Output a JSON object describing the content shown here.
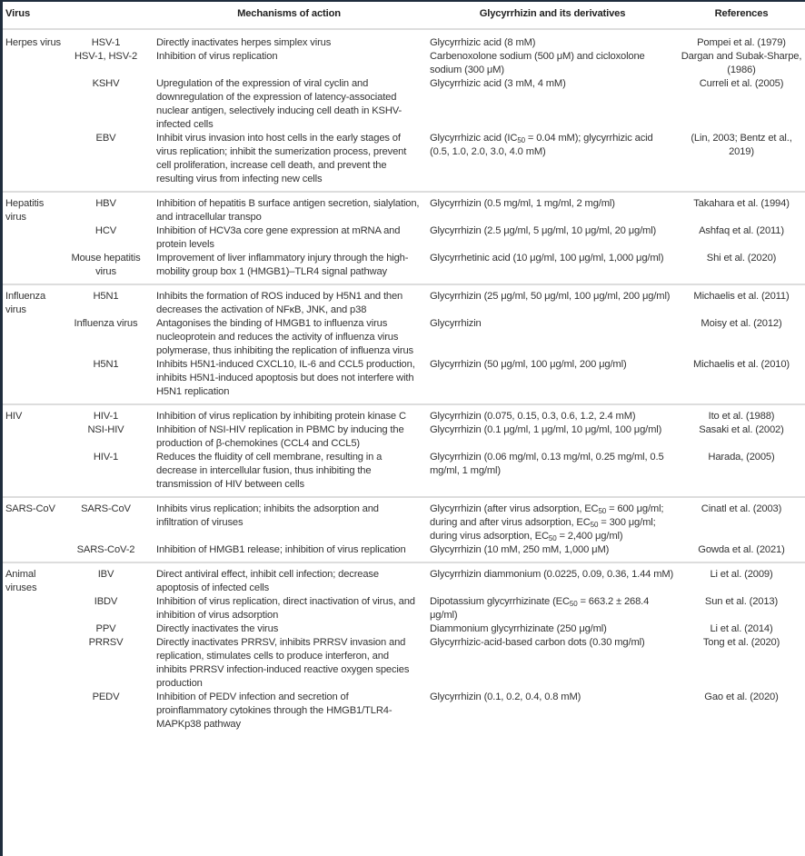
{
  "header": {
    "virus": "Virus",
    "mechanism": "Mechanisms of action",
    "glycyrrhizin": "Glycyrrhizin and its derivatives",
    "references": "References"
  },
  "groups": [
    {
      "name": "Herpes virus",
      "rows": [
        {
          "virus": "HSV-1",
          "mechanism": "Directly inactivates herpes simplex virus",
          "gly": [
            "Glycyrrhizic acid (8 mM)"
          ],
          "ref": "Pompei et al. (1979)"
        },
        {
          "virus": "HSV-1, HSV-2",
          "mechanism": "Inhibition of virus replication",
          "gly": [
            "Carbenoxolone sodium (500 μM) and cicloxolone sodium (300 μM)"
          ],
          "ref": "Dargan and Subak-Sharpe, (1986)"
        },
        {
          "virus": "KSHV",
          "mechanism": "Upregulation of the expression of viral cyclin and downregulation of the expression of latency-associated nuclear antigen, selectively inducing cell death in KSHV-infected cells",
          "gly": [
            "Glycyrrhizic acid (3 mM, 4 mM)"
          ],
          "ref": "Curreli et al. (2005)"
        },
        {
          "virus": "EBV",
          "mechanism": "Inhibit virus invasion into host cells in the early stages of virus replication; inhibit the sumerization process, prevent cell proliferation, increase cell death, and prevent the resulting virus from infecting new cells",
          "gly": [
            "Glycyrrhizic acid (IC",
            "50",
            " = 0.04 mM); glycyrrhizic acid (0.5, 1.0, 2.0, 3.0, 4.0 mM)"
          ],
          "ref": "(Lin, 2003; Bentz et al., 2019)"
        }
      ]
    },
    {
      "name": "Hepatitis virus",
      "rows": [
        {
          "virus": "HBV",
          "mechanism": "Inhibition of hepatitis B surface antigen secretion, sialylation, and intracellular transpo",
          "gly": [
            "Glycyrrhizin (0.5 mg/ml, 1 mg/ml, 2 mg/ml)"
          ],
          "ref": "Takahara et al. (1994)"
        },
        {
          "virus": "HCV",
          "mechanism": "Inhibition of HCV3a core gene expression at mRNA and protein levels",
          "gly": [
            "Glycyrrhizin (2.5 μg/ml, 5 μg/ml, 10 μg/ml, 20 μg/ml)"
          ],
          "ref": "Ashfaq et al. (2011)"
        },
        {
          "virus": "Mouse hepatitis virus",
          "mechanism": "Improvement of liver inflammatory injury through the high-mobility group box 1 (HMGB1)–TLR4 signal pathway",
          "gly": [
            "Glycyrrhetinic acid (10 μg/ml, 100 μg/ml, 1,000 μg/ml)"
          ],
          "ref": "Shi et al. (2020)"
        }
      ]
    },
    {
      "name": "Influenza virus",
      "rows": [
        {
          "virus": "H5N1",
          "mechanism": "Inhibits the formation of ROS induced by H5N1 and then decreases the activation of NFκB, JNK, and p38",
          "gly": [
            "Glycyrrhizin (25 μg/ml, 50 μg/ml, 100 μg/ml, 200 μg/ml)"
          ],
          "ref": "Michaelis et al. (2011)"
        },
        {
          "virus": "Influenza virus",
          "mechanism": "Antagonises the binding of HMGB1 to influenza virus nucleoprotein and reduces the activity of influenza virus polymerase, thus inhibiting the replication of influenza virus",
          "gly": [
            "Glycyrrhizin"
          ],
          "ref": "Moisy et al. (2012)"
        },
        {
          "virus": "H5N1",
          "mechanism": "Inhibits H5N1-induced CXCL10, IL-6 and CCL5 production, inhibits H5N1-induced apoptosis but does not interfere with H5N1 replication",
          "gly": [
            "Glycyrrhizin (50 μg/ml, 100 μg/ml, 200 μg/ml)"
          ],
          "ref": "Michaelis et al. (2010)"
        }
      ]
    },
    {
      "name": "HIV",
      "rows": [
        {
          "virus": "HIV-1",
          "mechanism": "Inhibition of virus replication by inhibiting protein kinase C",
          "gly": [
            "Glycyrrhizin (0.075, 0.15, 0.3, 0.6, 1.2, 2.4 mM)"
          ],
          "ref": "Ito et al. (1988)"
        },
        {
          "virus": "NSI-HIV",
          "mechanism": "Inhibition of NSI-HIV replication in PBMC by inducing the production of β-chemokines (CCL4 and CCL5)",
          "gly": [
            "Glycyrrhizin (0.1 μg/ml, 1 μg/ml, 10 μg/ml, 100 μg/ml)"
          ],
          "ref": "Sasaki et al. (2002)"
        },
        {
          "virus": "HIV-1",
          "mechanism": "Reduces the fluidity of cell membrane, resulting in a decrease in intercellular fusion, thus inhibiting the transmission of HIV between cells",
          "gly": [
            "Glycyrrhizin (0.06 mg/ml, 0.13 mg/ml, 0.25 mg/ml, 0.5 mg/ml, 1 mg/ml)"
          ],
          "ref": "Harada, (2005)"
        }
      ]
    },
    {
      "name": "SARS-CoV",
      "rows": [
        {
          "virus": "SARS-CoV",
          "mechanism": "Inhibits virus replication; inhibits the adsorption and infiltration of viruses",
          "gly": [
            "Glycyrrhizin (after virus adsorption, EC",
            "50",
            " = 600 μg/ml; during and after virus adsorption, EC",
            "50",
            " = 300 μg/ml; during virus adsorption, EC",
            "50",
            " = 2,400 μg/ml)"
          ],
          "ref": "Cinatl et al. (2003)"
        },
        {
          "virus": "SARS-CoV-2",
          "mechanism": "Inhibition of HMGB1 release; inhibition of virus replication",
          "gly": [
            "Glycyrrhizin (10 mM, 250 mM, 1,000 μM)"
          ],
          "ref": "Gowda et al. (2021)"
        }
      ]
    },
    {
      "name": "Animal viruses",
      "rows": [
        {
          "virus": "IBV",
          "mechanism": "Direct antiviral effect, inhibit cell infection; decrease apoptosis of infected cells",
          "gly": [
            "Glycyrrhizin diammonium (0.0225, 0.09, 0.36, 1.44 mM)"
          ],
          "ref": "Li et al. (2009)"
        },
        {
          "virus": "IBDV",
          "mechanism": "Inhibition of virus replication, direct inactivation of virus, and inhibition of virus adsorption",
          "gly": [
            "Dipotassium glycyrrhizinate (EC",
            "50",
            " = 663.2 ± 268.4 μg/ml)"
          ],
          "ref": "Sun et al. (2013)"
        },
        {
          "virus": "PPV",
          "mechanism": "Directly inactivates the virus",
          "gly": [
            "Diammonium glycyrrhizinate (250 μg/ml)"
          ],
          "ref": "Li et al. (2014)"
        },
        {
          "virus": "PRRSV",
          "mechanism": "Directly inactivates PRRSV, inhibits PRRSV invasion and replication, stimulates cells to produce interferon, and inhibits PRRSV infection-induced reactive oxygen species production",
          "gly": [
            "Glycyrrhizic-acid-based carbon dots (0.30 mg/ml)"
          ],
          "ref": "Tong et al. (2020)"
        },
        {
          "virus": "PEDV",
          "mechanism": "Inhibition of PEDV infection and secretion of proinflammatory cytokines through the HMGB1/TLR4-MAPKp38 pathway",
          "gly": [
            "Glycyrrhizin (0.1, 0.2, 0.4, 0.8 mM)"
          ],
          "ref": "Gao et al. (2020)"
        }
      ]
    }
  ]
}
